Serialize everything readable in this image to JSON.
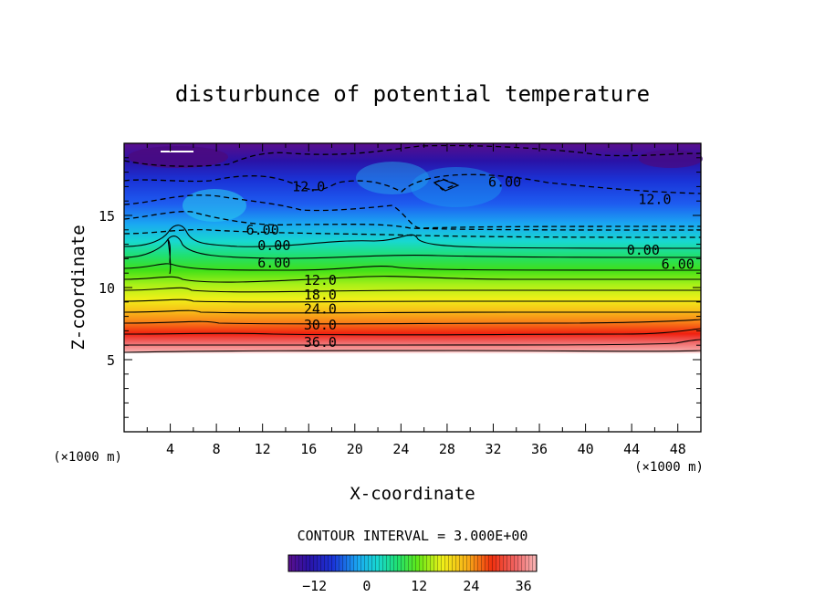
{
  "chart_data": {
    "type": "contour",
    "title": "disturbunce of potential temperature",
    "xlabel": "X-coordinate",
    "ylabel": "Z-coordinate",
    "x_unit": "(×1000 m)",
    "y_unit": "(×1000 m)",
    "xlim": [
      0,
      50
    ],
    "ylim": [
      0,
      20
    ],
    "x_ticks": [
      "4",
      "8",
      "12",
      "16",
      "20",
      "24",
      "28",
      "32",
      "36",
      "40",
      "44",
      "48"
    ],
    "y_ticks": [
      "5",
      "10",
      "15"
    ],
    "contour_interval_text": "CONTOUR INTERVAL = 3.000E+00",
    "contour_labels": [
      {
        "text": "12.0",
        "x": 16,
        "z": 17.0
      },
      {
        "text": "6.00",
        "x": 12,
        "z": 14.0
      },
      {
        "text": "0.00",
        "x": 13,
        "z": 12.9
      },
      {
        "text": "6.00",
        "x": 13,
        "z": 11.7
      },
      {
        "text": "12.0",
        "x": 17,
        "z": 10.5
      },
      {
        "text": "18.0",
        "x": 17,
        "z": 9.5
      },
      {
        "text": "24.0",
        "x": 17,
        "z": 8.5
      },
      {
        "text": "30.0",
        "x": 17,
        "z": 7.4
      },
      {
        "text": "36.0",
        "x": 17,
        "z": 6.2
      },
      {
        "text": "6.00",
        "x": 33,
        "z": 17.3
      },
      {
        "text": "12.0",
        "x": 46,
        "z": 16.1
      },
      {
        "text": "0.00",
        "x": 45,
        "z": 12.6
      },
      {
        "text": "6.00",
        "x": 48,
        "z": 11.6
      }
    ],
    "colorbar": {
      "min": -18,
      "max": 39,
      "ticks": [
        "-12",
        "0",
        "12",
        "24",
        "36"
      ]
    },
    "field_note_visible": false
  }
}
